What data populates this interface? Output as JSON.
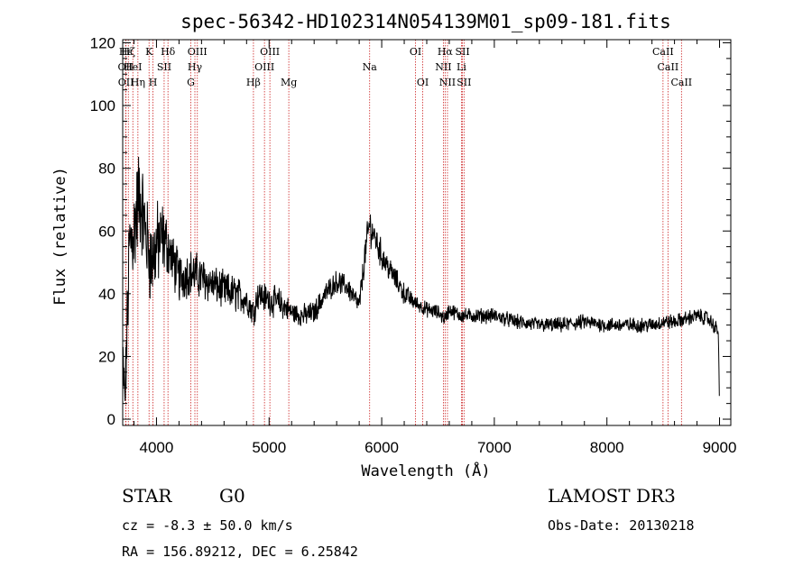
{
  "chart_data": {
    "type": "line",
    "title": "spec-56342-HD102314N054139M01_sp09-181.fits",
    "xlabel": "Wavelength (Å)",
    "ylabel": "Flux (relative)",
    "xlim": [
      3700,
      9100
    ],
    "ylim": [
      -2,
      121
    ],
    "xticks": [
      4000,
      5000,
      6000,
      7000,
      8000,
      9000
    ],
    "xtick_labels": [
      "4000",
      "5000",
      "6000",
      "7000",
      "8000",
      "9000"
    ],
    "yticks": [
      0,
      20,
      40,
      60,
      80,
      100,
      120
    ],
    "ytick_labels": [
      "0",
      "20",
      "40",
      "60",
      "80",
      "100",
      "120"
    ],
    "spectrum_envelope": {
      "x": [
        3700,
        3720,
        3760,
        3800,
        3850,
        3900,
        3950,
        4000,
        4050,
        4100,
        4150,
        4200,
        4300,
        4400,
        4500,
        4600,
        4700,
        4800,
        4861,
        4900,
        5000,
        5100,
        5200,
        5300,
        5400,
        5500,
        5600,
        5700,
        5800,
        5850,
        5890,
        5950,
        6000,
        6100,
        6200,
        6300,
        6400,
        6500,
        6563,
        6600,
        6700,
        6800,
        7000,
        7200,
        7400,
        7600,
        7800,
        8000,
        8200,
        8400,
        8500,
        8600,
        8700,
        8800,
        8900,
        8990,
        9000
      ],
      "flux": [
        20,
        5,
        55,
        60,
        72,
        60,
        50,
        55,
        58,
        55,
        50,
        45,
        47,
        45,
        43,
        41,
        40,
        38,
        34,
        40,
        38,
        37,
        34,
        33,
        34,
        40,
        44,
        42,
        36,
        52,
        62,
        57,
        52,
        46,
        40,
        37,
        35,
        34,
        32,
        35,
        33,
        33,
        33,
        31,
        30,
        30,
        31,
        30,
        30,
        30,
        31,
        31,
        32,
        33,
        32,
        28,
        2
      ],
      "noise_amplitude": [
        8,
        8,
        14,
        14,
        14,
        12,
        12,
        12,
        10,
        8,
        7,
        7,
        6,
        6,
        5,
        5,
        5,
        4,
        4,
        4,
        4,
        4,
        3,
        3,
        3,
        3,
        3,
        3,
        3,
        4,
        5,
        4,
        4,
        3,
        3,
        2,
        2,
        2,
        2,
        2,
        2,
        2,
        2,
        2,
        2,
        2,
        2,
        2,
        2,
        2,
        2,
        2,
        2,
        2,
        2,
        2,
        0
      ]
    },
    "spectral_lines": [
      {
        "name": "Hε",
        "wavelength": 3728,
        "row": 0
      },
      {
        "name": "OII",
        "wavelength": 3727,
        "row": 1
      },
      {
        "name": "OII",
        "wavelength": 3729,
        "row": 2
      },
      {
        "name": "Hζ",
        "wavelength": 3750,
        "row": 0
      },
      {
        "name": "HeI",
        "wavelength": 3790,
        "row": 1
      },
      {
        "name": "Hη",
        "wavelength": 3835,
        "row": 2
      },
      {
        "name": "K",
        "wavelength": 3934,
        "row": 0
      },
      {
        "name": "SII",
        "wavelength": 4068,
        "row": 1
      },
      {
        "name": "H",
        "wavelength": 3969,
        "row": 2
      },
      {
        "name": "Hδ",
        "wavelength": 4102,
        "row": 0
      },
      {
        "name": "OIII",
        "wavelength": 4363,
        "row": 0
      },
      {
        "name": "Hγ",
        "wavelength": 4341,
        "row": 1
      },
      {
        "name": "G",
        "wavelength": 4305,
        "row": 2
      },
      {
        "name": "Hβ",
        "wavelength": 4861,
        "row": 2
      },
      {
        "name": "OIII",
        "wavelength": 5007,
        "row": 0
      },
      {
        "name": "OIII",
        "wavelength": 4959,
        "row": 1
      },
      {
        "name": "Mg",
        "wavelength": 5175,
        "row": 2
      },
      {
        "name": "Na",
        "wavelength": 5893,
        "row": 1
      },
      {
        "name": "OI",
        "wavelength": 6300,
        "row": 0
      },
      {
        "name": "OI",
        "wavelength": 6364,
        "row": 2
      },
      {
        "name": "Hα",
        "wavelength": 6563,
        "row": 0
      },
      {
        "name": "NII",
        "wavelength": 6548,
        "row": 1
      },
      {
        "name": "NII",
        "wavelength": 6584,
        "row": 2
      },
      {
        "name": "SII",
        "wavelength": 6717,
        "row": 0
      },
      {
        "name": "Li",
        "wavelength": 6708,
        "row": 1
      },
      {
        "name": "SII",
        "wavelength": 6731,
        "row": 2
      },
      {
        "name": "CaII",
        "wavelength": 8498,
        "row": 0
      },
      {
        "name": "CaII",
        "wavelength": 8542,
        "row": 1
      },
      {
        "name": "CaII",
        "wavelength": 8662,
        "row": 2
      }
    ],
    "line_color": "#000000",
    "marker_color": "#cc2222"
  },
  "info": {
    "class_label": "STAR",
    "subclass_label": "G0",
    "survey": "LAMOST DR3",
    "cz_text": "cz = -8.3 ± 50.0 km/s",
    "obs_date": "Obs-Date: 20130218",
    "radec": "RA = 156.89212, DEC =    6.25842"
  }
}
